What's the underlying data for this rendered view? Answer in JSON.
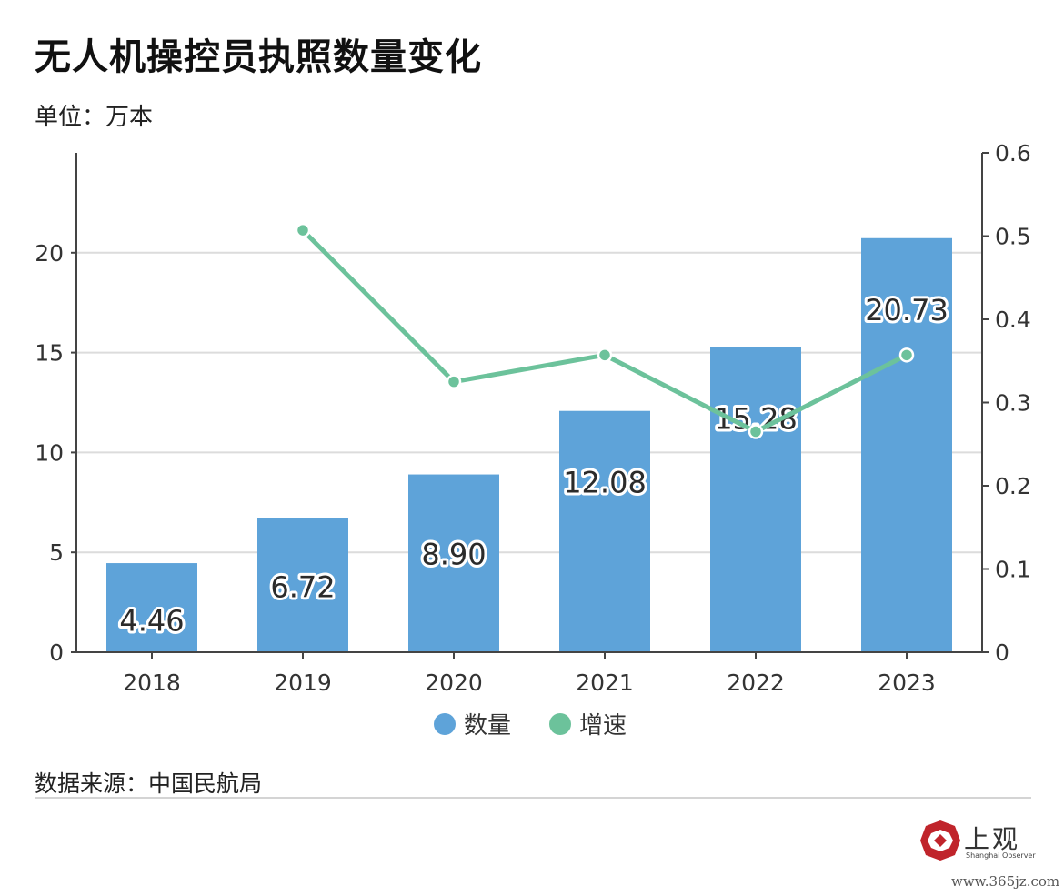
{
  "title": "无人机操控员执照数量变化",
  "unit_label": "单位：万本",
  "source": "数据来源：中国民航局",
  "logo": {
    "text": "上观",
    "subtitle": "Shanghai Observer"
  },
  "watermark": "www.365jz.com",
  "colors": {
    "bar": "#5ea3d9",
    "line": "#6cc29b",
    "grid": "#dcdcdc",
    "axis": "#444444"
  },
  "chart_data": {
    "type": "bar",
    "categories": [
      "2018",
      "2019",
      "2020",
      "2021",
      "2022",
      "2023"
    ],
    "series": [
      {
        "name": "数量",
        "type": "bar",
        "axis": "left",
        "values": [
          4.46,
          6.72,
          8.9,
          12.08,
          15.28,
          20.73
        ],
        "labels": [
          "4.46",
          "6.72",
          "8.90",
          "12.08",
          "15.28",
          "20.73"
        ]
      },
      {
        "name": "增速",
        "type": "line",
        "axis": "right",
        "values": [
          null,
          0.507,
          0.325,
          0.357,
          0.265,
          0.357
        ]
      }
    ],
    "y_left": {
      "ylim": [
        0,
        25
      ],
      "ticks": [
        0,
        5,
        10,
        15,
        20
      ],
      "tick_labels": [
        "0",
        "5",
        "10",
        "15",
        "20"
      ]
    },
    "y_right": {
      "ylim": [
        0,
        0.6
      ],
      "ticks": [
        0,
        0.1,
        0.2,
        0.3,
        0.4,
        0.5,
        0.6
      ],
      "tick_labels": [
        "0",
        "0.1",
        "0.2",
        "0.3",
        "0.4",
        "0.5",
        "0.6"
      ]
    },
    "grid": true,
    "legend_position": "bottom-center"
  }
}
